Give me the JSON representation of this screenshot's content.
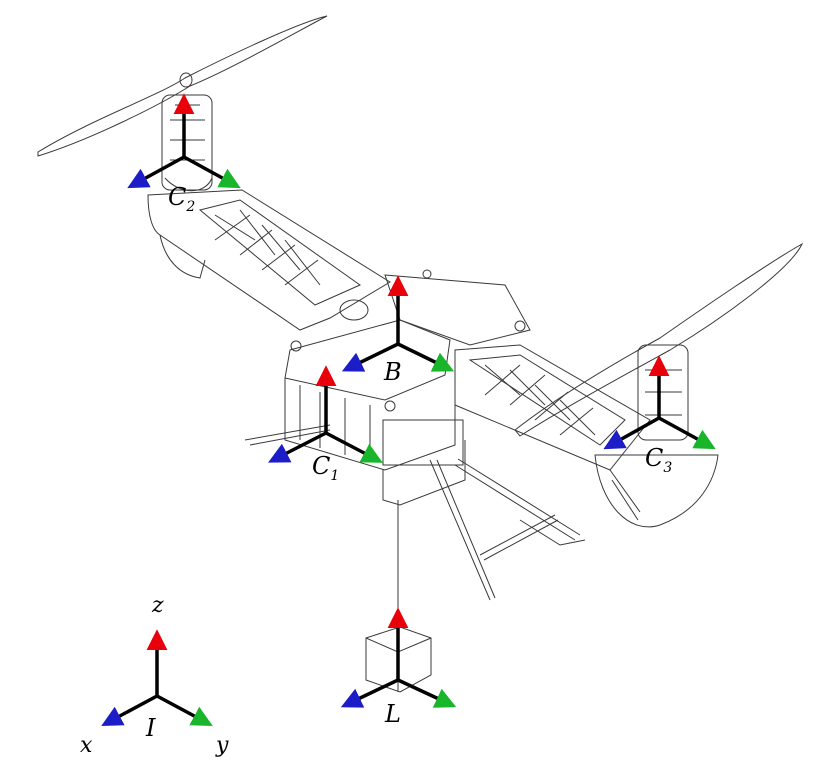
{
  "frames": {
    "inertial": {
      "symbol": "I",
      "x_label": "x",
      "y_label": "y",
      "z_label": "z"
    },
    "body": {
      "symbol": "B"
    },
    "load": {
      "symbol": "L"
    },
    "c1": {
      "symbol": "C",
      "sub": "1"
    },
    "c2": {
      "symbol": "C",
      "sub": "2"
    },
    "c3": {
      "symbol": "C",
      "sub": "3"
    }
  },
  "colors": {
    "z_axis": "#e8000b",
    "x_axis": "#1d1dc8",
    "y_axis": "#19b52a",
    "line": "#000000",
    "drawing": "#3a3a3a"
  }
}
